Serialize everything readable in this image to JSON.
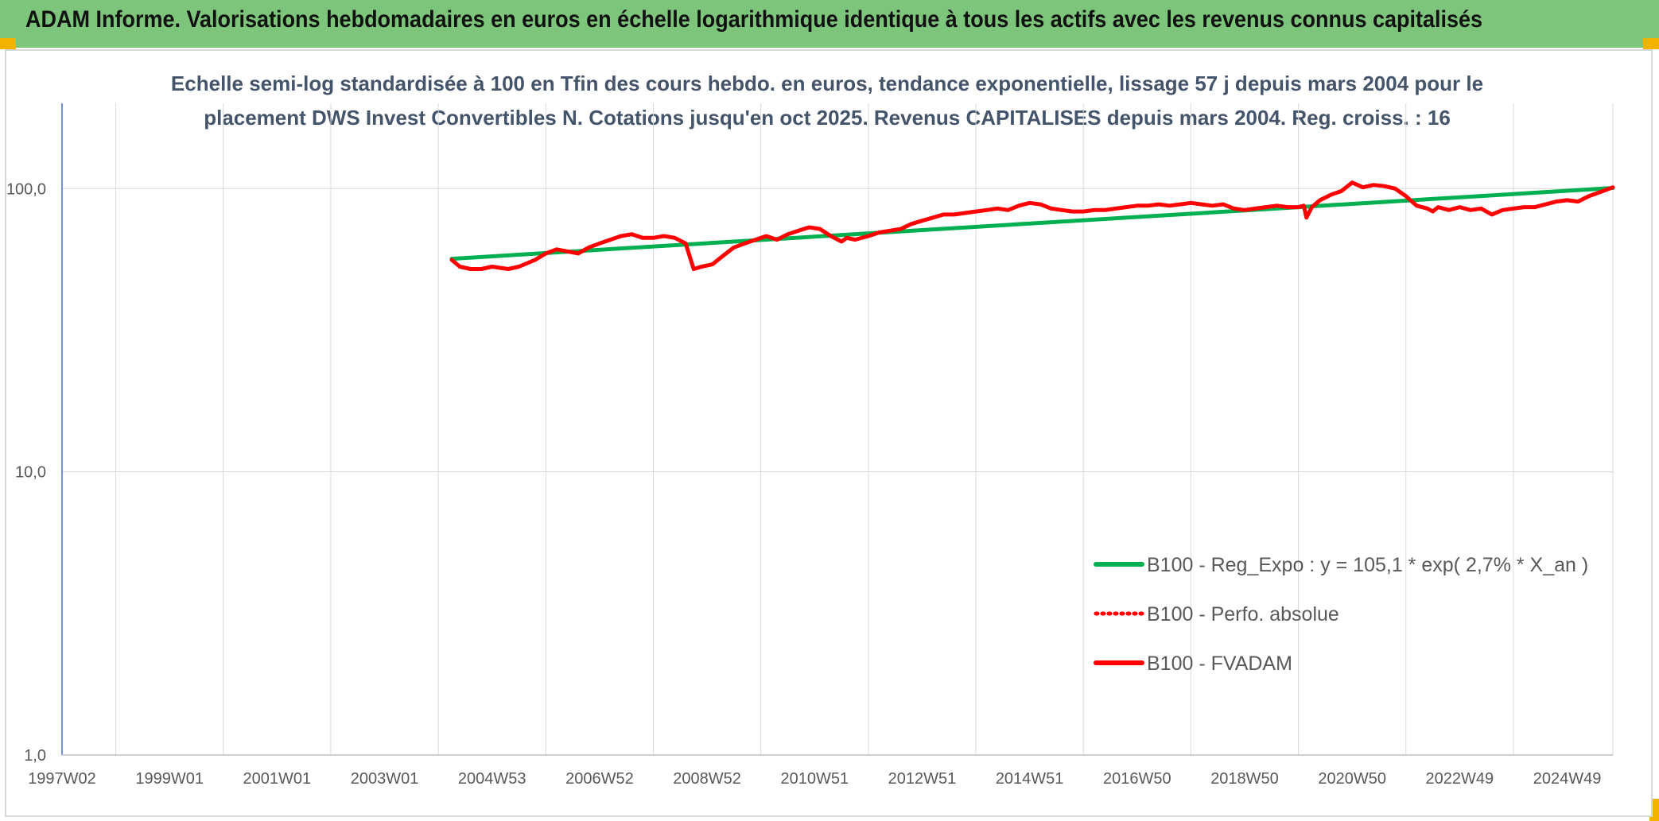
{
  "banner": {
    "title": "ADAM Informe. Valorisations hebdomadaires en euros en échelle logarithmique identique à tous les actifs avec les revenus connus capitalisés"
  },
  "colors": {
    "banner_bg": "#7dc57a",
    "corner_accent": "#f2b200",
    "title_text": "#44546a",
    "grid": "#d9d9d9",
    "regression": "#00b050",
    "fvadam": "#ff0000"
  },
  "chart_data": {
    "type": "line",
    "title_line1": "Echelle semi-log standardisée à 100 en Tfin des cours hebdo. en euros, tendance exponentielle, lissage 57 j depuis mars 2004 pour le",
    "title_line2": "placement DWS Invest Convertibles N. Cotations jusqu'en oct 2025. Revenus CAPITALISES depuis mars 2004. Reg. croiss. : 16",
    "y_scale": "log",
    "ylim": [
      1,
      200
    ],
    "y_ticks": [
      {
        "value": 1,
        "label": "1,0"
      },
      {
        "value": 10,
        "label": "10,0"
      },
      {
        "value": 100,
        "label": "100,0"
      }
    ],
    "xlim": [
      1997.0,
      2025.85
    ],
    "x_ticks": [
      {
        "label": "1997W02",
        "x": 1997.0
      },
      {
        "label": "1999W01",
        "x": 1999.0
      },
      {
        "label": "2001W01",
        "x": 2001.0
      },
      {
        "label": "2003W01",
        "x": 2003.0
      },
      {
        "label": "2004W53",
        "x": 2005.0
      },
      {
        "label": "2006W52",
        "x": 2007.0
      },
      {
        "label": "2008W52",
        "x": 2009.0
      },
      {
        "label": "2010W51",
        "x": 2011.0
      },
      {
        "label": "2012W51",
        "x": 2013.0
      },
      {
        "label": "2014W51",
        "x": 2015.0
      },
      {
        "label": "2016W50",
        "x": 2017.0
      },
      {
        "label": "2018W50",
        "x": 2019.0
      },
      {
        "label": "2020W50",
        "x": 2021.0
      },
      {
        "label": "2022W49",
        "x": 2023.0
      },
      {
        "label": "2024W49",
        "x": 2025.0
      }
    ],
    "grid": true,
    "legend_position": "lower-right",
    "series": [
      {
        "name": "B100 - Reg_Expo : y = 105,1 * exp( 2,7% *  X_an )",
        "style": "solid-thick",
        "color": "#00b050",
        "x": [
          2004.25,
          2025.85
        ],
        "y": [
          56.5,
          100.5
        ]
      },
      {
        "name": "B100 - Perfo. absolue",
        "style": "dotted",
        "color": "#ff0000",
        "x": [],
        "y": []
      },
      {
        "name": "B100 - FVADAM",
        "style": "solid-thick",
        "color": "#ff0000",
        "x": [
          2004.25,
          2004.4,
          2004.6,
          2004.8,
          2005.0,
          2005.3,
          2005.5,
          2005.8,
          2006.0,
          2006.2,
          2006.4,
          2006.6,
          2006.8,
          2007.0,
          2007.2,
          2007.4,
          2007.6,
          2007.8,
          2008.0,
          2008.2,
          2008.4,
          2008.6,
          2008.75,
          2008.9,
          2009.1,
          2009.3,
          2009.5,
          2009.7,
          2009.9,
          2010.1,
          2010.3,
          2010.5,
          2010.7,
          2010.9,
          2011.1,
          2011.3,
          2011.5,
          2011.6,
          2011.75,
          2012.0,
          2012.2,
          2012.4,
          2012.6,
          2012.8,
          2013.0,
          2013.2,
          2013.4,
          2013.6,
          2013.8,
          2014.0,
          2014.2,
          2014.4,
          2014.6,
          2014.8,
          2015.0,
          2015.2,
          2015.4,
          2015.6,
          2015.8,
          2016.0,
          2016.2,
          2016.4,
          2016.6,
          2016.8,
          2017.0,
          2017.2,
          2017.4,
          2017.6,
          2017.8,
          2018.0,
          2018.2,
          2018.4,
          2018.6,
          2018.8,
          2019.0,
          2019.2,
          2019.4,
          2019.6,
          2019.8,
          2020.0,
          2020.1,
          2020.15,
          2020.25,
          2020.4,
          2020.6,
          2020.8,
          2021.0,
          2021.2,
          2021.4,
          2021.6,
          2021.8,
          2022.0,
          2022.2,
          2022.4,
          2022.5,
          2022.6,
          2022.8,
          2023.0,
          2023.2,
          2023.4,
          2023.6,
          2023.8,
          2024.0,
          2024.2,
          2024.4,
          2024.6,
          2024.8,
          2025.0,
          2025.2,
          2025.4,
          2025.6,
          2025.85
        ],
        "y": [
          56,
          53,
          52,
          52,
          53,
          52,
          53,
          56,
          59,
          61,
          60,
          59,
          62,
          64,
          66,
          68,
          69,
          67,
          67,
          68,
          67,
          64,
          52,
          53,
          54,
          58,
          62,
          64,
          66,
          68,
          66,
          69,
          71,
          73,
          72,
          68,
          65,
          67,
          66,
          68,
          70,
          71,
          72,
          75,
          77,
          79,
          81,
          81,
          82,
          83,
          84,
          85,
          84,
          87,
          89,
          88,
          85,
          84,
          83,
          83,
          84,
          84,
          85,
          86,
          87,
          87,
          88,
          87,
          88,
          89,
          88,
          87,
          88,
          85,
          84,
          85,
          86,
          87,
          86,
          86,
          87,
          79,
          86,
          91,
          95,
          98,
          105,
          101,
          103,
          102,
          100,
          94,
          87,
          85,
          83,
          86,
          84,
          86,
          84,
          85,
          81,
          84,
          85,
          86,
          86,
          88,
          90,
          91,
          90,
          94,
          97,
          101
        ]
      }
    ]
  }
}
